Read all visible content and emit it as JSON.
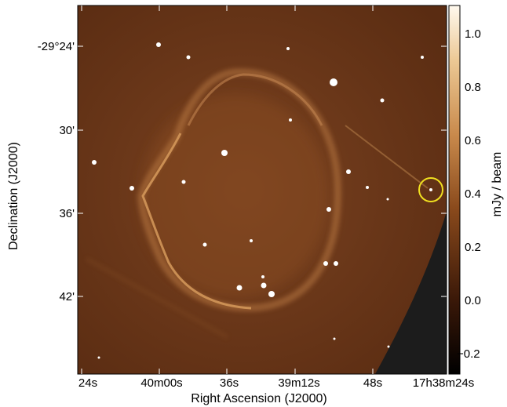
{
  "figure": {
    "xlabel": "Right Ascension (J2000)",
    "ylabel": "Declination (J2000)",
    "x_ticks": [
      "24s",
      "40m00s",
      "36s",
      "39m12s",
      "48s",
      "17h38m24s"
    ],
    "y_ticks": [
      "-29°24'",
      "30'",
      "36'",
      "42'"
    ],
    "colorbar": {
      "label": "mJy / beam",
      "ticks": [
        "1.0",
        "0.8",
        "0.6",
        "0.4",
        "0.2",
        "0.0",
        "−0.2"
      ],
      "range": [
        -0.28,
        1.1
      ],
      "colormap": [
        "#000000",
        "#3a1808",
        "#8a4a1c",
        "#c98a4c",
        "#ecc894",
        "#fff9ee"
      ]
    },
    "image": {
      "background_color": "#6e3a1a",
      "shell_color": "#c98a4c",
      "blank_region_color": "#1c1c1c",
      "marker_color": "#f0e020"
    }
  }
}
